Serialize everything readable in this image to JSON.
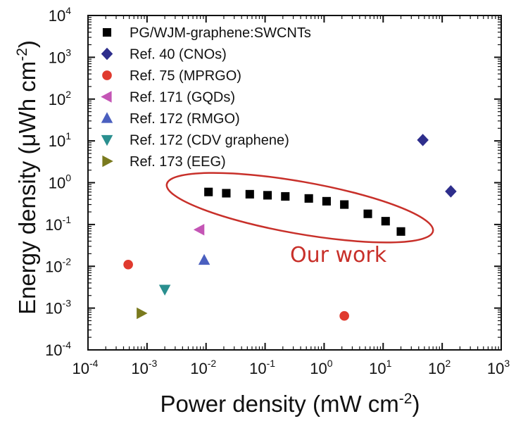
{
  "chart_data": {
    "type": "scatter",
    "title": "",
    "xlabel": {
      "main": "Power density (mW cm",
      "sup": "-2",
      "tail": ")"
    },
    "ylabel": {
      "main": "Energy density (μWh cm",
      "sup": "-2",
      "tail": ")"
    },
    "xscale": "log",
    "yscale": "log",
    "xlim": [
      0.0001,
      1000
    ],
    "ylim": [
      0.0001,
      10000
    ],
    "xticks": [
      {
        "base": "10",
        "exp": "-4"
      },
      {
        "base": "10",
        "exp": "-3"
      },
      {
        "base": "10",
        "exp": "-2"
      },
      {
        "base": "10",
        "exp": "-1"
      },
      {
        "base": "10",
        "exp": "0"
      },
      {
        "base": "10",
        "exp": "1"
      },
      {
        "base": "10",
        "exp": "2"
      },
      {
        "base": "10",
        "exp": "3"
      }
    ],
    "yticks": [
      {
        "base": "10",
        "exp": "-4"
      },
      {
        "base": "10",
        "exp": "-3"
      },
      {
        "base": "10",
        "exp": "-2"
      },
      {
        "base": "10",
        "exp": "-1"
      },
      {
        "base": "10",
        "exp": "0"
      },
      {
        "base": "10",
        "exp": "1"
      },
      {
        "base": "10",
        "exp": "2"
      },
      {
        "base": "10",
        "exp": "3"
      },
      {
        "base": "10",
        "exp": "4"
      }
    ],
    "grid": false,
    "legend_position": "top-left",
    "series": [
      {
        "name": "PG/WJM-graphene:SWCNTs",
        "marker": "square",
        "color": "#000000",
        "x": [
          0.011,
          0.022,
          0.055,
          0.11,
          0.22,
          0.55,
          1.1,
          2.2,
          5.5,
          11,
          20
        ],
        "y": [
          0.6,
          0.56,
          0.53,
          0.5,
          0.47,
          0.42,
          0.36,
          0.3,
          0.18,
          0.12,
          0.068
        ]
      },
      {
        "name": "Ref. 40 (CNOs)",
        "marker": "diamond",
        "color": "#2e2e8c",
        "x": [
          47,
          140
        ],
        "y": [
          10.5,
          0.62
        ]
      },
      {
        "name": "Ref. 75 (MPRGO)",
        "marker": "circle",
        "color": "#e03a2e",
        "x": [
          0.00048,
          2.2
        ],
        "y": [
          0.011,
          0.00065
        ]
      },
      {
        "name": "Ref. 171 (GQDs)",
        "marker": "triangle-left",
        "color": "#c455b5",
        "x": [
          0.0078
        ],
        "y": [
          0.075
        ]
      },
      {
        "name": "Ref. 172 (RMGO)",
        "marker": "triangle-up",
        "color": "#4a5fbf",
        "x": [
          0.0093
        ],
        "y": [
          0.014
        ]
      },
      {
        "name": "Ref. 172 (CDV graphene)",
        "marker": "triangle-down",
        "color": "#2a8f8f",
        "x": [
          0.002
        ],
        "y": [
          0.0028
        ]
      },
      {
        "name": "Ref. 173 (EEG)",
        "marker": "triangle-right",
        "color": "#7a7a1e",
        "x": [
          0.0008
        ],
        "y": [
          0.00075
        ]
      }
    ],
    "annotations": [
      {
        "text": "Our work",
        "color": "#c8302a",
        "shape": "ellipse"
      }
    ]
  }
}
